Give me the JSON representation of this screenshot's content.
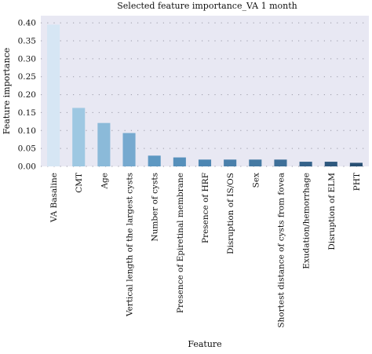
{
  "chart_data": {
    "type": "bar",
    "title": "Selected feature importance_VA 1 month",
    "xlabel": "Feature",
    "ylabel": "Feature importance",
    "ylim": [
      0,
      0.42
    ],
    "yticks": [
      "0.00",
      "0.05",
      "0.10",
      "0.15",
      "0.20",
      "0.25",
      "0.30",
      "0.35",
      "0.40"
    ],
    "grid": true,
    "categories": [
      "VA Basaline",
      "CMT",
      "Age",
      "Vertical length of the largest cysts",
      "Number of cysts",
      "Presence of Epiretinal membrane",
      "Presence of HRF",
      "Disruption of IS/OS",
      "Sex",
      "Shortest distance of cysts from fovea",
      "Exudation/hemorrhage",
      "Disruption of ELM",
      "PHT"
    ],
    "values": [
      0.395,
      0.163,
      0.121,
      0.093,
      0.03,
      0.025,
      0.019,
      0.019,
      0.019,
      0.019,
      0.013,
      0.013,
      0.01
    ],
    "colors": [
      "#d6e6f4",
      "#9ec8e2",
      "#8bbad9",
      "#76a9cf",
      "#5e98c2",
      "#5690bb",
      "#4d86b2",
      "#4a80ab",
      "#457aa3",
      "#3f7099",
      "#35628a",
      "#2e587e",
      "#284f73"
    ],
    "plot_background": "#e8e8f3"
  }
}
